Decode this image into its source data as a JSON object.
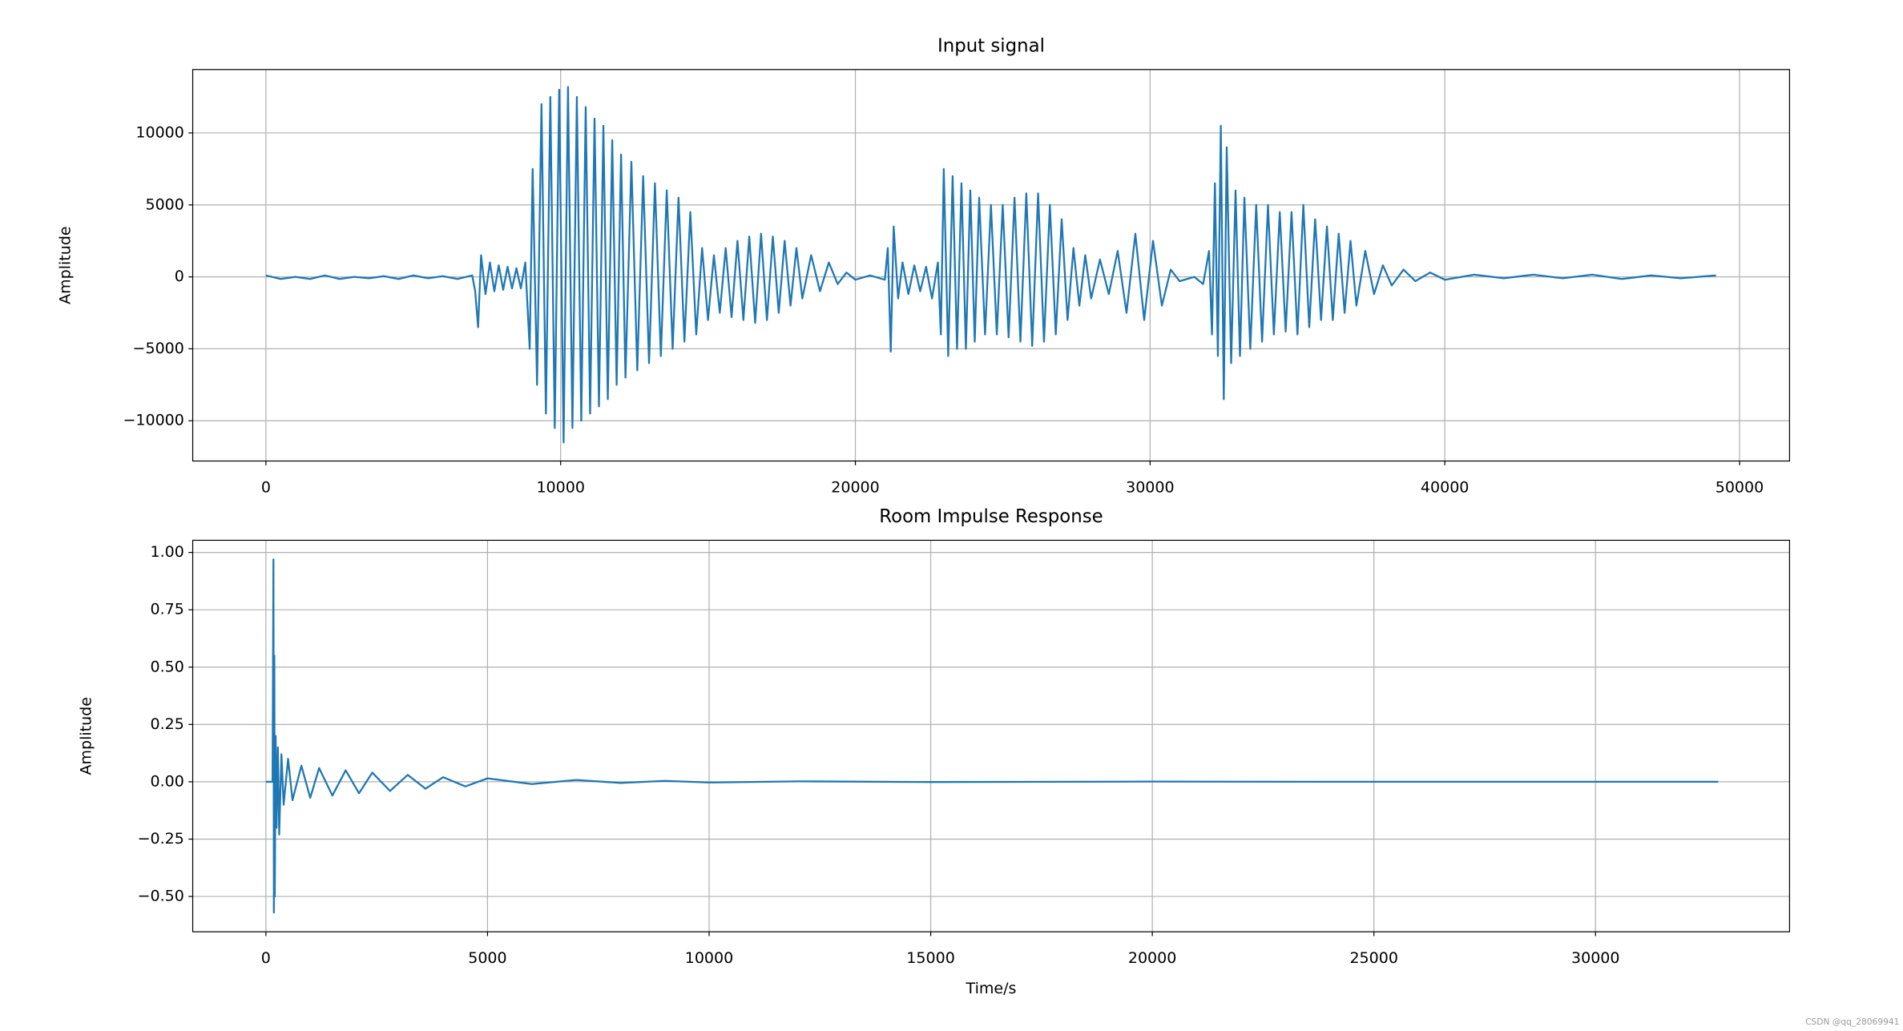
{
  "chart_data": [
    {
      "type": "line",
      "title": "Input signal",
      "ylabel": "Amplitude",
      "color": "#1f77b4",
      "grid": true,
      "xlim": [
        -2483,
        51697
      ],
      "ylim": [
        -12797,
        14407
      ],
      "xticks": [
        0,
        10000,
        20000,
        30000,
        40000,
        50000
      ],
      "yticks": [
        {
          "value": -10000,
          "label": "−10000"
        },
        {
          "value": -5000,
          "label": "−5000"
        },
        0,
        5000,
        10000
      ],
      "x": [
        0,
        500,
        1000,
        1500,
        2000,
        2500,
        3000,
        3500,
        4000,
        4500,
        5000,
        5500,
        6000,
        6500,
        7000,
        7100,
        7200,
        7300,
        7450,
        7600,
        7750,
        7900,
        8050,
        8200,
        8350,
        8500,
        8650,
        8800,
        8950,
        9050,
        9200,
        9350,
        9500,
        9650,
        9800,
        9950,
        10100,
        10250,
        10400,
        10550,
        10700,
        10850,
        11000,
        11150,
        11300,
        11450,
        11600,
        11750,
        11900,
        12050,
        12200,
        12400,
        12600,
        12800,
        13000,
        13200,
        13400,
        13600,
        13800,
        14000,
        14200,
        14400,
        14600,
        14800,
        15000,
        15200,
        15400,
        15600,
        15800,
        16000,
        16200,
        16400,
        16600,
        16800,
        17000,
        17200,
        17400,
        17600,
        17800,
        18000,
        18200,
        18500,
        18800,
        19100,
        19400,
        19700,
        20000,
        20500,
        21000,
        21100,
        21200,
        21300,
        21450,
        21600,
        21800,
        22000,
        22200,
        22400,
        22600,
        22800,
        22900,
        23000,
        23150,
        23300,
        23450,
        23600,
        23750,
        23900,
        24050,
        24200,
        24400,
        24600,
        24800,
        25000,
        25200,
        25400,
        25600,
        25800,
        26000,
        26200,
        26400,
        26600,
        26800,
        27000,
        27200,
        27400,
        27600,
        27800,
        28000,
        28300,
        28600,
        28900,
        29200,
        29500,
        29800,
        30100,
        30400,
        30700,
        31000,
        31500,
        31800,
        32000,
        32100,
        32200,
        32300,
        32400,
        32500,
        32600,
        32750,
        32900,
        33050,
        33200,
        33400,
        33600,
        33800,
        34000,
        34200,
        34400,
        34600,
        34800,
        35000,
        35200,
        35400,
        35600,
        35800,
        36000,
        36200,
        36400,
        36600,
        36800,
        37000,
        37300,
        37600,
        37900,
        38200,
        38600,
        39000,
        39500,
        40000,
        41000,
        42000,
        43000,
        44000,
        45000,
        46000,
        47000,
        48000,
        49200
      ],
      "values": [
        100,
        -150,
        0,
        -150,
        100,
        -150,
        0,
        -100,
        50,
        -150,
        100,
        -100,
        50,
        -150,
        100,
        -1000,
        -3500,
        1500,
        -1200,
        1000,
        -1000,
        800,
        -900,
        700,
        -800,
        600,
        -800,
        1000,
        -5000,
        7500,
        -7500,
        12000,
        -9500,
        12500,
        -10500,
        13000,
        -11500,
        13200,
        -10500,
        12500,
        -10000,
        11800,
        -9500,
        11000,
        -9000,
        10500,
        -8500,
        9500,
        -7500,
        8500,
        -7000,
        8000,
        -6500,
        7000,
        -6000,
        6500,
        -5500,
        6000,
        -5000,
        5500,
        -4500,
        4500,
        -4000,
        2000,
        -3000,
        1500,
        -2500,
        2000,
        -2800,
        2500,
        -3000,
        2800,
        -3200,
        3000,
        -3000,
        2800,
        -2500,
        2500,
        -2000,
        2000,
        -1500,
        1500,
        -1000,
        1000,
        -500,
        300,
        -200,
        100,
        -200,
        2000,
        -5200,
        3500,
        -1500,
        1000,
        -1200,
        800,
        -1000,
        700,
        -1500,
        1000,
        -4000,
        7500,
        -5500,
        7000,
        -5000,
        6500,
        -5000,
        6000,
        -4500,
        5500,
        -4000,
        5000,
        -4000,
        5000,
        -4200,
        5500,
        -4500,
        5800,
        -4800,
        5800,
        -4500,
        5000,
        -4000,
        4000,
        -3000,
        2000,
        -2000,
        1500,
        -1500,
        1200,
        -1200,
        1800,
        -2500,
        3000,
        -3000,
        2500,
        -2000,
        500,
        -300,
        0,
        -500,
        1800,
        -4000,
        6500,
        -5500,
        10500,
        -8500,
        9000,
        -6000,
        6000,
        -5500,
        5500,
        -5000,
        5000,
        -4500,
        5000,
        -4000,
        4500,
        -3800,
        4500,
        -4000,
        5000,
        -3500,
        4000,
        -3000,
        3500,
        -3000,
        3000,
        -2500,
        2500,
        -2000,
        1800,
        -1200,
        800,
        -600,
        500,
        -300,
        300,
        -200,
        150,
        -100,
        150,
        -100,
        150,
        -150,
        100,
        -100,
        100
      ]
    },
    {
      "type": "line",
      "title": "Room Impulse Response",
      "ylabel": "Amplitude",
      "xlabel": "Time/s",
      "color": "#1f77b4",
      "grid": true,
      "xlim": [
        -1651,
        34378
      ],
      "ylim": [
        -0.654,
        1.053
      ],
      "xticks": [
        0,
        5000,
        10000,
        15000,
        20000,
        25000,
        30000
      ],
      "yticks": [
        {
          "value": -0.5,
          "label": "−0.50"
        },
        {
          "value": -0.25,
          "label": "−0.25"
        },
        {
          "value": 0,
          "label": "0.00"
        },
        {
          "value": 0.25,
          "label": "0.25"
        },
        {
          "value": 0.5,
          "label": "0.50"
        },
        {
          "value": 0.75,
          "label": "0.75"
        },
        {
          "value": 1,
          "label": "1.00"
        }
      ],
      "x": [
        0,
        150,
        170,
        180,
        190,
        200,
        220,
        240,
        270,
        300,
        350,
        400,
        500,
        600,
        800,
        1000,
        1200,
        1500,
        1800,
        2100,
        2400,
        2800,
        3200,
        3600,
        4000,
        4500,
        5000,
        6000,
        7000,
        8000,
        9000,
        10000,
        12000,
        15000,
        20000,
        25000,
        30000,
        32768
      ],
      "values": [
        0,
        0,
        0.97,
        -0.57,
        0.55,
        -0.5,
        0.2,
        -0.2,
        0.15,
        -0.23,
        0.12,
        -0.1,
        0.1,
        -0.08,
        0.07,
        -0.07,
        0.06,
        -0.06,
        0.05,
        -0.05,
        0.04,
        -0.04,
        0.03,
        -0.03,
        0.02,
        -0.02,
        0.015,
        -0.01,
        0.008,
        -0.005,
        0.004,
        -0.003,
        0.002,
        -0.001,
        0.001,
        0,
        0,
        0
      ]
    }
  ],
  "watermark": "CSDN @qq_28069941"
}
